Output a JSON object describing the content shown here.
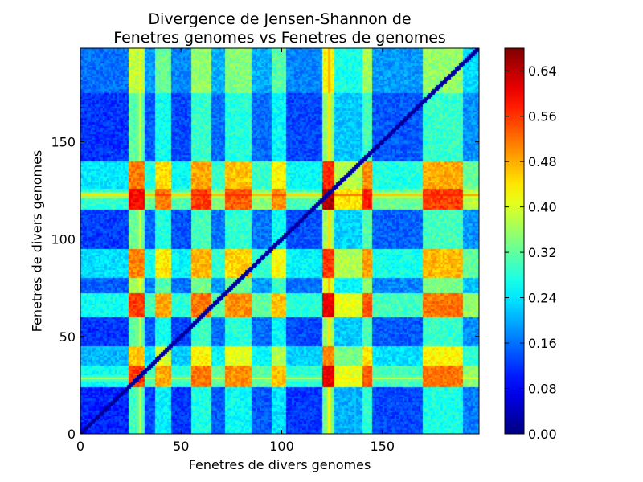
{
  "chart_data": {
    "type": "heatmap",
    "title": [
      "Divergence de Jensen-Shannon de",
      "Fenetres genomes vs Fenetres de genomes"
    ],
    "xlabel": "Fenetres de divers genomes",
    "ylabel": "Fenetres de divers genomes",
    "xlim": [
      0,
      198
    ],
    "ylim": [
      0,
      198
    ],
    "x_ticks": [
      0,
      50,
      100,
      150
    ],
    "y_ticks": [
      0,
      50,
      100,
      150
    ],
    "n_windows": 198,
    "colormap": "jet",
    "colorbar": {
      "min": 0.0,
      "max": 0.68,
      "ticks": [
        "0.00",
        "0.08",
        "0.16",
        "0.24",
        "0.32",
        "0.40",
        "0.48",
        "0.56",
        "0.64"
      ]
    },
    "diagonal_value": 0.0,
    "background_value": 0.08,
    "row_scores": [
      {
        "range": [
          0,
          24
        ],
        "score": 0.03
      },
      {
        "range": [
          24,
          35
        ],
        "score": 0.3
      },
      {
        "range": [
          35,
          45
        ],
        "score": 0.2
      },
      {
        "range": [
          45,
          60
        ],
        "score": 0.05
      },
      {
        "range": [
          60,
          72
        ],
        "score": 0.3
      },
      {
        "range": [
          72,
          80
        ],
        "score": 0.1
      },
      {
        "range": [
          80,
          95
        ],
        "score": 0.25
      },
      {
        "range": [
          95,
          115
        ],
        "score": 0.06
      },
      {
        "range": [
          115,
          126
        ],
        "score": 0.34
      },
      {
        "range": [
          126,
          140
        ],
        "score": 0.26
      },
      {
        "range": [
          140,
          175
        ],
        "score": 0.05
      },
      {
        "range": [
          175,
          198
        ],
        "score": 0.12
      }
    ],
    "column_scores": [
      {
        "range": [
          0,
          24
        ],
        "score": 0.02
      },
      {
        "range": [
          24,
          32
        ],
        "score": 0.34
      },
      {
        "range": [
          32,
          37
        ],
        "score": 0.06
      },
      {
        "range": [
          37,
          45
        ],
        "score": 0.26
      },
      {
        "range": [
          45,
          55
        ],
        "score": 0.04
      },
      {
        "range": [
          55,
          65
        ],
        "score": 0.3
      },
      {
        "range": [
          65,
          72
        ],
        "score": 0.08
      },
      {
        "range": [
          72,
          85
        ],
        "score": 0.28
      },
      {
        "range": [
          85,
          95
        ],
        "score": 0.08
      },
      {
        "range": [
          95,
          102
        ],
        "score": 0.24
      },
      {
        "range": [
          102,
          120
        ],
        "score": 0.04
      },
      {
        "range": [
          120,
          126
        ],
        "score": 0.4
      },
      {
        "range": [
          126,
          140
        ],
        "score": 0.18
      },
      {
        "range": [
          140,
          145
        ],
        "score": 0.32
      },
      {
        "range": [
          145,
          170
        ],
        "score": 0.06
      },
      {
        "range": [
          170,
          190
        ],
        "score": 0.3
      },
      {
        "range": [
          190,
          198
        ],
        "score": 0.12
      }
    ],
    "hot_bands": [
      {
        "axis": "y",
        "at": 122,
        "value": 0.62
      },
      {
        "axis": "y",
        "at": 28,
        "value": 0.52
      },
      {
        "axis": "x",
        "at": 29,
        "value": 0.55
      },
      {
        "axis": "x",
        "at": 123,
        "value": 0.6
      }
    ],
    "light_lines": [
      {
        "axis": "x",
        "at": 136,
        "value": 0.22
      },
      {
        "axis": "y",
        "at": 136,
        "value": 0.22
      },
      {
        "axis": "y",
        "at": 44,
        "value": 0.22
      }
    ]
  }
}
